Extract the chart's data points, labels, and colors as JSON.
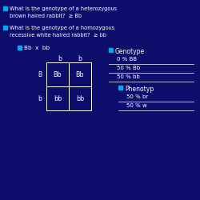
{
  "bg_color": "#0d0d6b",
  "text_color": "white",
  "bullet_color": "#00aaee",
  "title1": "What is the genotype of a heterozygous",
  "title1b": "brown haired rabbit?  ≥ Bb",
  "title2": "What is the genotype of a homozygous",
  "title2b": "recessive white haired rabbit?  ≥ bb",
  "cross_label": "Bb  x  bb",
  "col_headers": [
    "b",
    "b"
  ],
  "row_headers": [
    "B",
    "b"
  ],
  "cells": [
    [
      "Bb",
      "Bb"
    ],
    [
      "bb",
      "bb"
    ]
  ],
  "genotype_label": "Genotype",
  "genotype_rows": [
    {
      "num": "0",
      "rest": " % BB"
    },
    {
      "num": "50",
      "rest": " % Bb"
    },
    {
      "num": "50",
      "rest": " % bb"
    }
  ],
  "phenotype_label": "Phenotyp",
  "phenotype_rows": [
    {
      "num": "50",
      "rest": " % br"
    },
    {
      "num": "50",
      "rest": " % w"
    }
  ]
}
